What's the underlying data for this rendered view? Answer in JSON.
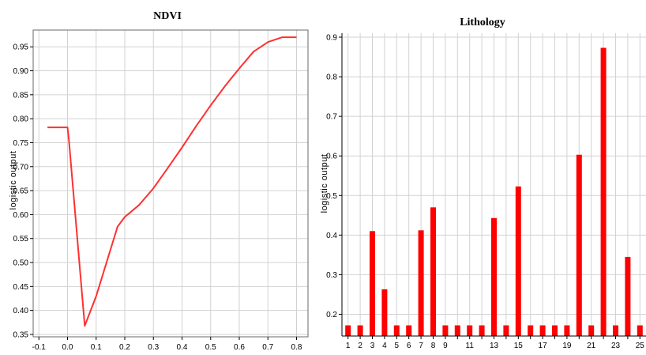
{
  "chart_data": [
    {
      "type": "line",
      "title": "NDVI",
      "xlabel": "",
      "ylabel": "logistic output",
      "xlim": [
        -0.12,
        0.84
      ],
      "ylim": [
        0.345,
        0.985
      ],
      "x_ticks": [
        "-0.1",
        "0.0",
        "0.1",
        "0.2",
        "0.3",
        "0.4",
        "0.5",
        "0.6",
        "0.7",
        "0.8"
      ],
      "y_ticks": [
        "0.35",
        "0.40",
        "0.45",
        "0.50",
        "0.55",
        "0.60",
        "0.65",
        "0.70",
        "0.75",
        "0.80",
        "0.85",
        "0.90",
        "0.95"
      ],
      "grid": true,
      "color": "#ff3030",
      "series": [
        {
          "x": [
            -0.07,
            0.0,
            0.005,
            0.06,
            0.1,
            0.175,
            0.2,
            0.25,
            0.3,
            0.35,
            0.4,
            0.45,
            0.5,
            0.55,
            0.6,
            0.65,
            0.7,
            0.75,
            0.8
          ],
          "y": [
            0.782,
            0.782,
            0.755,
            0.368,
            0.43,
            0.575,
            0.595,
            0.62,
            0.655,
            0.697,
            0.74,
            0.785,
            0.828,
            0.868,
            0.905,
            0.94,
            0.96,
            0.97,
            0.97
          ]
        }
      ]
    },
    {
      "type": "bar",
      "title": "Lithology",
      "xlabel": "",
      "ylabel": "logistic output",
      "ylim": [
        0.145,
        0.91
      ],
      "categories": [
        "1",
        "2",
        "3",
        "4",
        "5",
        "6",
        "7",
        "8",
        "9",
        "10",
        "11",
        "12",
        "13",
        "14",
        "15",
        "16",
        "17",
        "18",
        "19",
        "20",
        "21",
        "22",
        "23",
        "24",
        "25"
      ],
      "x_tick_labels": [
        "1",
        "2",
        "3",
        "4",
        "5",
        "6",
        "7",
        "8",
        "9",
        "",
        "11",
        "",
        "13",
        "",
        "15",
        "",
        "17",
        "",
        "19",
        "",
        "21",
        "",
        "23",
        "",
        "25"
      ],
      "values": [
        0.172,
        0.172,
        0.41,
        0.263,
        0.172,
        0.172,
        0.412,
        0.47,
        0.172,
        0.172,
        0.172,
        0.172,
        0.443,
        0.172,
        0.523,
        0.172,
        0.172,
        0.172,
        0.172,
        0.603,
        0.172,
        0.873,
        0.172,
        0.345,
        0.172
      ],
      "y_ticks": [
        "0.2",
        "0.3",
        "0.4",
        "0.5",
        "0.6",
        "0.7",
        "0.8",
        "0.9"
      ],
      "grid": true,
      "color": "#ff0000"
    }
  ]
}
